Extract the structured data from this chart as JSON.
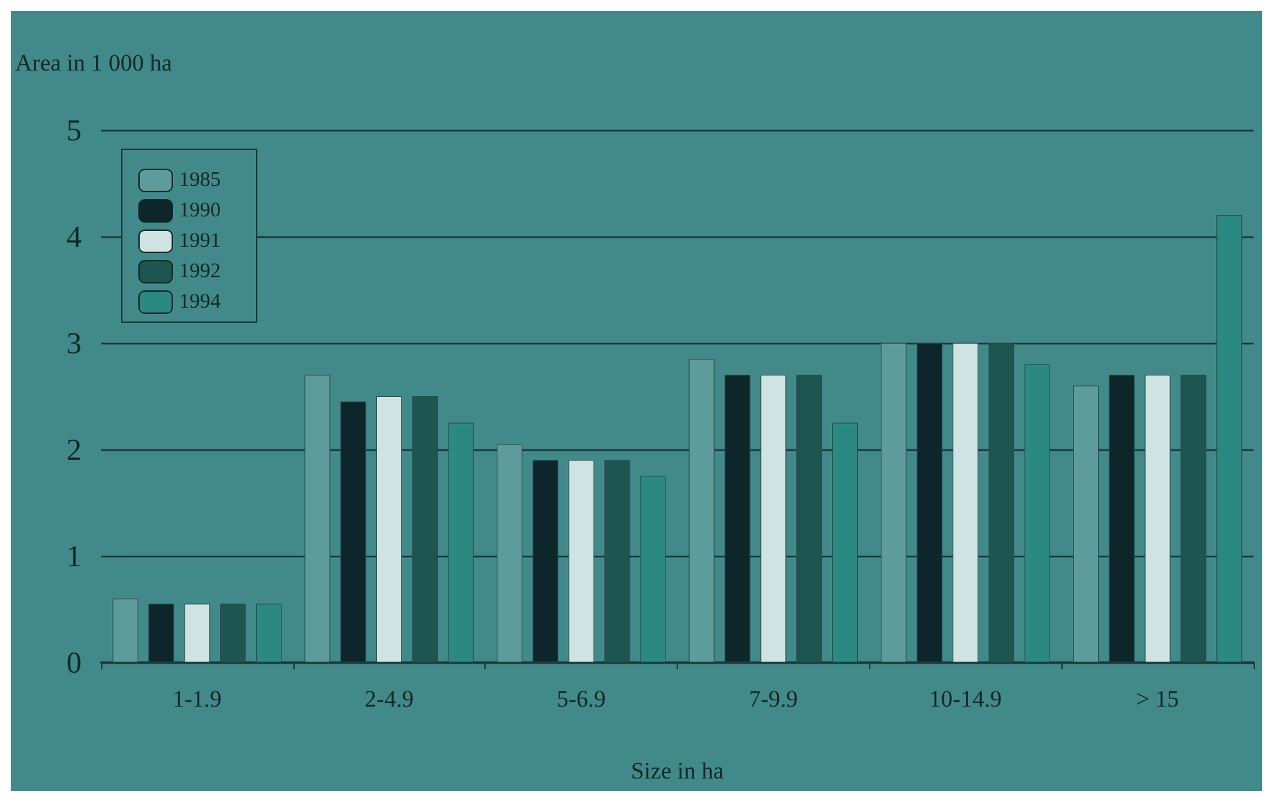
{
  "chart_data": {
    "type": "bar",
    "xlabel": "Size in ha",
    "ylabel": "Area in 1 000 ha",
    "categories": [
      "1-1.9",
      "2-4.9",
      "5-6.9",
      "7-9.9",
      "10-14.9",
      "> 15"
    ],
    "series": [
      {
        "name": "1985",
        "color": "#5e9c9c",
        "values": [
          0.6,
          2.7,
          2.05,
          2.85,
          3.0,
          2.6
        ]
      },
      {
        "name": "1990",
        "color": "#0c2629",
        "values": [
          0.55,
          2.45,
          1.9,
          2.7,
          3.0,
          2.7
        ]
      },
      {
        "name": "1991",
        "color": "#cfe4e2",
        "values": [
          0.55,
          2.5,
          1.9,
          2.7,
          3.0,
          2.7
        ]
      },
      {
        "name": "1992",
        "color": "#1d5550",
        "values": [
          0.55,
          2.5,
          1.9,
          2.7,
          3.0,
          2.7
        ]
      },
      {
        "name": "1994",
        "color": "#2a8a82",
        "values": [
          0.55,
          2.25,
          1.75,
          2.25,
          2.8,
          4.2
        ]
      }
    ],
    "ylim": [
      0,
      5
    ],
    "yticks": [
      0,
      1,
      2,
      3,
      4,
      5
    ],
    "grid": "y",
    "legend": "top left"
  }
}
